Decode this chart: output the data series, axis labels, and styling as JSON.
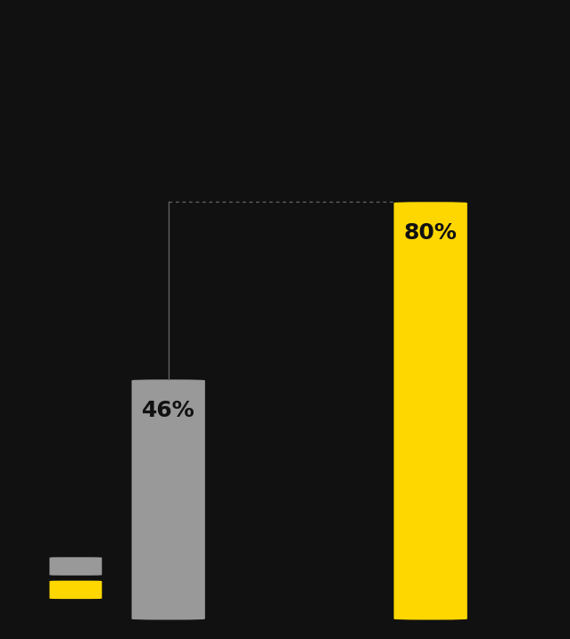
{
  "values": [
    46,
    80
  ],
  "bar_colors": [
    "#999999",
    "#FFD700"
  ],
  "labels": [
    "46%",
    "80%"
  ],
  "background_color": "#111111",
  "label_color": "#111111",
  "connector_color": "#666666",
  "ylim": [
    0,
    100
  ],
  "label_fontsize": 18,
  "x_positions": [
    1.0,
    2.5
  ],
  "bar_width": 0.42,
  "xlim": [
    0.2,
    3.2
  ]
}
